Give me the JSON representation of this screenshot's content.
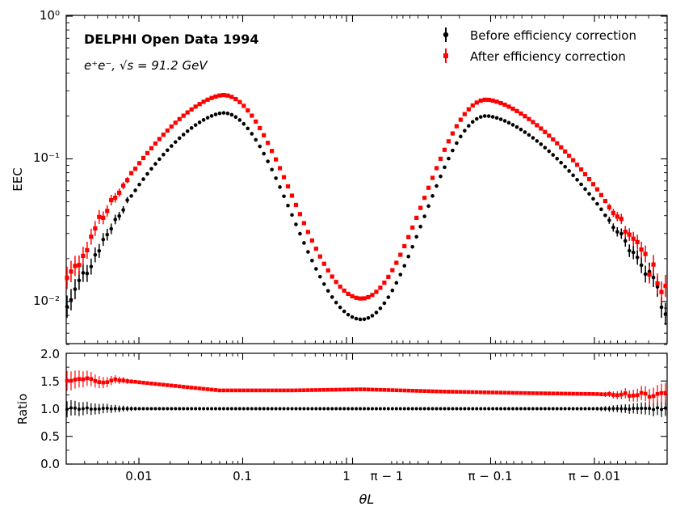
{
  "chart_data": {
    "type": "scatter",
    "title_main": "DELPHI Open Data 1994",
    "title_sub": "e⁺e⁻, √s = 91.2 GeV",
    "xlabel": "θL",
    "top_panel": {
      "ylabel": "EEC",
      "yscale": "log",
      "ylim": [
        0.005,
        1
      ],
      "y_ticks": [
        {
          "value": 0.01,
          "label": "10⁻²"
        },
        {
          "value": 0.1,
          "label": "10⁻¹"
        },
        {
          "value": 1,
          "label": "10⁰"
        }
      ],
      "legend": {
        "position": "top-right",
        "entries": [
          {
            "label": "Before efficiency correction",
            "color": "#000000"
          },
          {
            "label": "After efficiency correction",
            "color": "#ff0000"
          }
        ]
      }
    },
    "bottom_panel": {
      "ylabel": "Ratio",
      "ylim": [
        0.0,
        2.0
      ],
      "y_ticks": [
        "0.0",
        "0.5",
        "1.0",
        "1.5",
        "2.0"
      ]
    },
    "x_axis": {
      "scale": "symmetric log around θL=π/2 (left: θL, right: π−θL)",
      "ticks": [
        "0.01",
        "0.1",
        "1",
        "π − 1",
        "π − 0.1",
        "π − 0.01"
      ]
    },
    "series": [
      {
        "name": "Before efficiency correction",
        "color": "#000000",
        "marker": "circle",
        "curve": {
          "left_peak": {
            "theta": 0.065,
            "value": 0.21
          },
          "right_peak": {
            "pi_minus_theta": 0.11,
            "value": 0.2
          },
          "minimum": {
            "theta": 1.4,
            "value": 0.0075
          },
          "left_edge_value": 0.009,
          "right_edge_value": 0.009
        },
        "ratio": 1.0
      },
      {
        "name": "After efficiency correction",
        "color": "#ff0000",
        "marker": "square",
        "curve": {
          "left_peak": {
            "theta": 0.065,
            "value": 0.28
          },
          "right_peak": {
            "pi_minus_theta": 0.11,
            "value": 0.26
          },
          "minimum": {
            "theta": 1.4,
            "value": 0.0105
          },
          "left_edge_value": 0.014,
          "right_edge_value": 0.011
        },
        "ratio_profile": [
          {
            "x": 0.0024,
            "ratio": 1.55
          },
          {
            "x": 0.004,
            "ratio": 1.48
          },
          {
            "x": 0.006,
            "ratio": 1.52
          },
          {
            "x": 0.02,
            "ratio": 1.42
          },
          {
            "x": 0.06,
            "ratio": 1.33
          },
          {
            "x": 0.3,
            "ratio": 1.33
          },
          {
            "x": 1.4,
            "ratio": 1.35
          },
          {
            "x": "π−0.3",
            "ratio": 1.31
          },
          {
            "x": "π−0.04",
            "ratio": 1.28
          },
          {
            "x": "π−0.0025",
            "ratio": 1.25
          }
        ]
      }
    ]
  }
}
